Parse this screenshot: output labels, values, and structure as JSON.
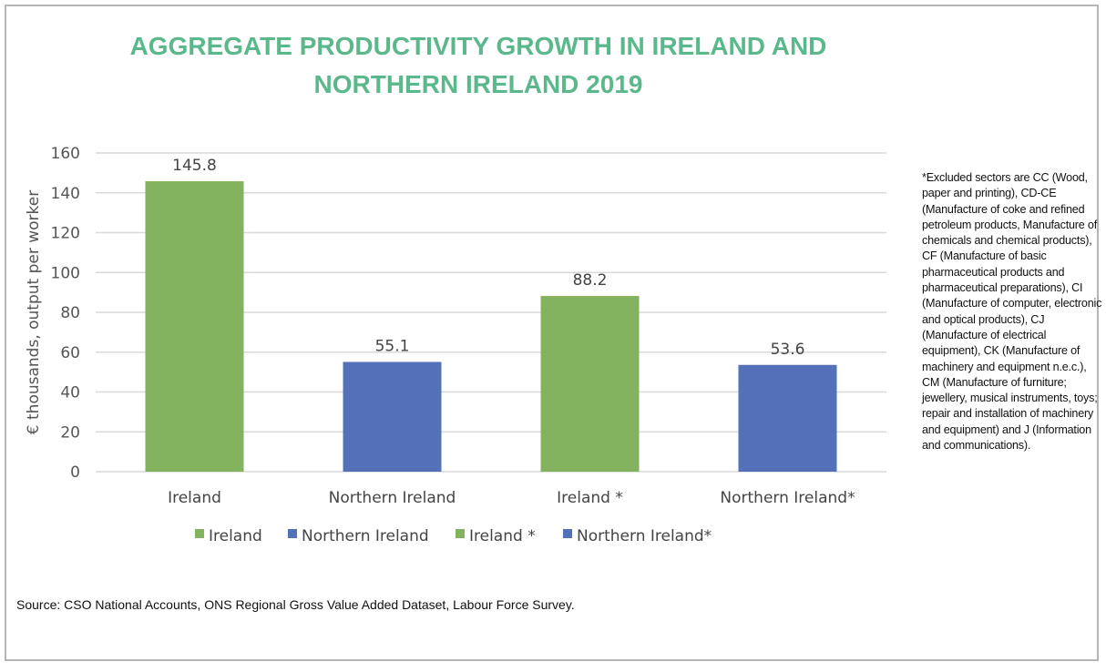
{
  "chart_data": {
    "type": "bar",
    "title": "AGGREGATE PRODUCTIVITY GROWTH IN IRELAND AND NORTHERN IRELAND 2019",
    "categories": [
      "Ireland",
      "Northern Ireland",
      "Ireland *",
      "Northern Ireland*"
    ],
    "values": [
      145.8,
      55.1,
      88.2,
      53.6
    ],
    "data_labels": [
      "145.8",
      "55.1",
      "88.2",
      "53.6"
    ],
    "colors": [
      "#84b35f",
      "#5470b8",
      "#84b35f",
      "#5470b8"
    ],
    "ylabel": "€ thousands, output per worker",
    "xlabel": "",
    "ylim": [
      0,
      160
    ],
    "yticks": [
      0,
      20,
      40,
      60,
      80,
      100,
      120,
      140,
      160
    ],
    "grid": true,
    "legend": {
      "placement": "bottom",
      "entries": [
        {
          "name": "Ireland",
          "color": "#84b35f"
        },
        {
          "name": "Northern Ireland",
          "color": "#5470b8"
        },
        {
          "name": "Ireland *",
          "color": "#84b35f"
        },
        {
          "name": "Northern Ireland*",
          "color": "#5470b8"
        }
      ]
    }
  },
  "note": "*Excluded sectors are CC (Wood, paper and printing), CD-CE (Manufacture of coke and refined petroleum products, Manufacture of chemicals and chemical products), CF (Manufacture of basic pharmaceutical products and pharmaceutical preparations), CI (Manufacture of computer, electronic and optical products), CJ (Manufacture of electrical equipment), CK (Manufacture of machinery and equipment n.e.c.), CM (Manufacture of furniture; jewellery, musical instruments, toys; repair and installation of machinery and equipment) and J (Information and communications).",
  "source": "Source: CSO National Accounts, ONS Regional Gross Value Added Dataset, Labour Force Survey."
}
